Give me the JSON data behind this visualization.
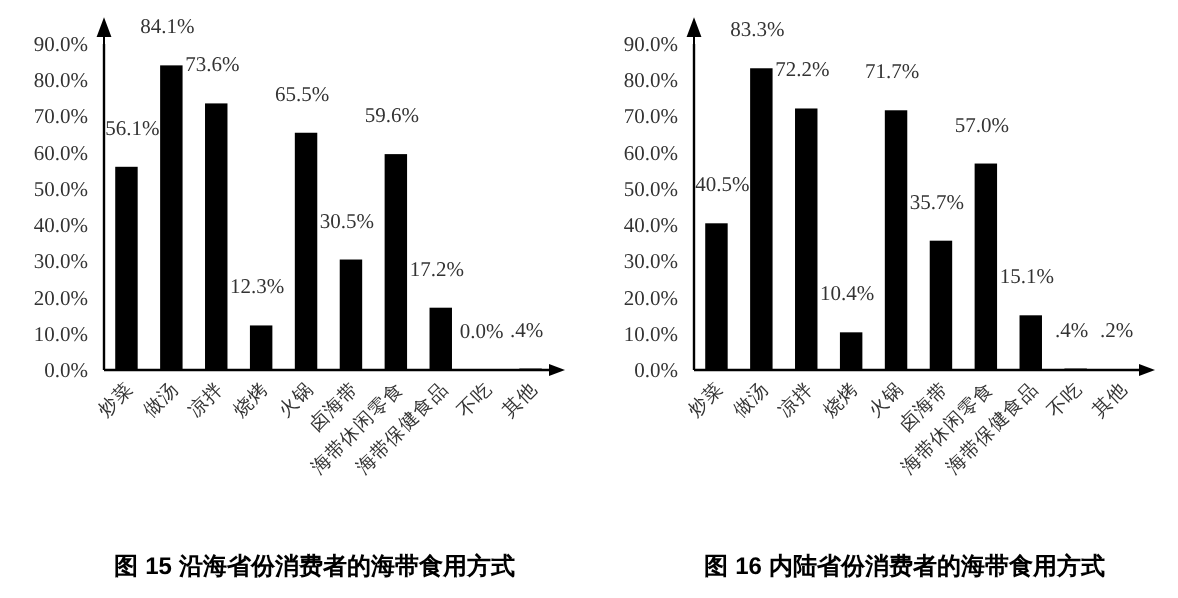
{
  "chart_data": [
    {
      "type": "bar",
      "title": "图 15 沿海省份消费者的海带食用方式",
      "categories": [
        "炒菜",
        "做汤",
        "凉拌",
        "烧烤",
        "火锅",
        "卤海带",
        "海带休闲零食",
        "海带保健食品",
        "不吃",
        "其他"
      ],
      "values": [
        56.1,
        84.1,
        73.6,
        12.3,
        65.5,
        30.5,
        59.6,
        17.2,
        0.0,
        0.4
      ],
      "color": "#000000",
      "value_labels": [
        "56.1%",
        "84.1%",
        "73.6%",
        "12.3%",
        "65.5%",
        "30.5%",
        "59.6%",
        "17.2%",
        "0.0%",
        ".4%"
      ],
      "ylim": [
        0,
        90
      ],
      "yticks": [
        {
          "value": 0,
          "label": "0.0%"
        },
        {
          "value": 10,
          "label": "10.0%"
        },
        {
          "value": 20,
          "label": "20.0%"
        },
        {
          "value": 30,
          "label": "30.0%"
        },
        {
          "value": 40,
          "label": "40.0%"
        },
        {
          "value": 50,
          "label": "50.0%"
        },
        {
          "value": 60,
          "label": "60.0%"
        },
        {
          "value": 70,
          "label": "70.0%"
        },
        {
          "value": 80,
          "label": "80.0%"
        },
        {
          "value": 90,
          "label": "90.0%"
        }
      ]
    },
    {
      "type": "bar",
      "title": "图 16 内陆省份消费者的海带食用方式",
      "categories": [
        "炒菜",
        "做汤",
        "凉拌",
        "烧烤",
        "火锅",
        "卤海带",
        "海带休闲零食",
        "海带保健食品",
        "不吃",
        "其他"
      ],
      "values": [
        40.5,
        83.3,
        72.2,
        10.4,
        71.7,
        35.7,
        57.0,
        15.1,
        0.4,
        0.2
      ],
      "color": "#000000",
      "value_labels": [
        "40.5%",
        "83.3%",
        "72.2%",
        "10.4%",
        "71.7%",
        "35.7%",
        "57.0%",
        "15.1%",
        ".4%",
        ".2%"
      ],
      "ylim": [
        0,
        90
      ],
      "yticks": [
        {
          "value": 0,
          "label": "0.0%"
        },
        {
          "value": 10,
          "label": "10.0%"
        },
        {
          "value": 20,
          "label": "20.0%"
        },
        {
          "value": 30,
          "label": "30.0%"
        },
        {
          "value": 40,
          "label": "40.0%"
        },
        {
          "value": 50,
          "label": "50.0%"
        },
        {
          "value": 60,
          "label": "60.0%"
        },
        {
          "value": 70,
          "label": "70.0%"
        },
        {
          "value": 80,
          "label": "80.0%"
        },
        {
          "value": 90,
          "label": "90.0%"
        }
      ]
    }
  ]
}
